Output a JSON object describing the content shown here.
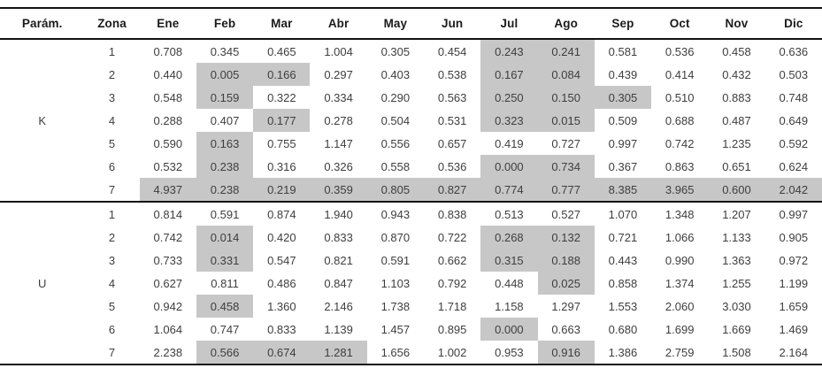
{
  "table": {
    "headers": [
      "Parám.",
      "Zona",
      "Ene",
      "Feb",
      "Mar",
      "Abr",
      "May",
      "Jun",
      "Jul",
      "Ago",
      "Sep",
      "Oct",
      "Nov",
      "Dic"
    ],
    "highlight_color": "#c7c7c7",
    "groups": [
      {
        "param": "K",
        "rows": [
          {
            "zona": "1",
            "values": [
              "0.708",
              "0.345",
              "0.465",
              "1.004",
              "0.305",
              "0.454",
              "0.243",
              "0.241",
              "0.581",
              "0.536",
              "0.458",
              "0.636"
            ],
            "gray": [
              6,
              7
            ]
          },
          {
            "zona": "2",
            "values": [
              "0.440",
              "0.005",
              "0.166",
              "0.297",
              "0.403",
              "0.538",
              "0.167",
              "0.084",
              "0.439",
              "0.414",
              "0.432",
              "0.503"
            ],
            "gray": [
              1,
              2,
              6,
              7
            ]
          },
          {
            "zona": "3",
            "values": [
              "0.548",
              "0.159",
              "0.322",
              "0.334",
              "0.290",
              "0.563",
              "0.250",
              "0.150",
              "0.305",
              "0.510",
              "0.883",
              "0.748"
            ],
            "gray": [
              1,
              6,
              7,
              8
            ]
          },
          {
            "zona": "4",
            "values": [
              "0.288",
              "0.407",
              "0.177",
              "0.278",
              "0.504",
              "0.531",
              "0.323",
              "0.015",
              "0.509",
              "0.688",
              "0.487",
              "0.649"
            ],
            "gray": [
              2,
              6,
              7
            ]
          },
          {
            "zona": "5",
            "values": [
              "0.590",
              "0.163",
              "0.755",
              "1.147",
              "0.556",
              "0.657",
              "0.419",
              "0.727",
              "0.997",
              "0.742",
              "1.235",
              "0.592"
            ],
            "gray": [
              1
            ]
          },
          {
            "zona": "6",
            "values": [
              "0.532",
              "0.238",
              "0.316",
              "0.326",
              "0.558",
              "0.536",
              "0.000",
              "0.734",
              "0.367",
              "0.863",
              "0.651",
              "0.624"
            ],
            "gray": [
              1,
              6,
              7
            ]
          },
          {
            "zona": "7",
            "values": [
              "4.937",
              "0.238",
              "0.219",
              "0.359",
              "0.805",
              "0.827",
              "0.774",
              "0.777",
              "8.385",
              "3.965",
              "0.600",
              "2.042"
            ],
            "gray": [
              0,
              1,
              2,
              3,
              4,
              5,
              6,
              7,
              8,
              9,
              10,
              11
            ]
          }
        ]
      },
      {
        "param": "U",
        "rows": [
          {
            "zona": "1",
            "values": [
              "0.814",
              "0.591",
              "0.874",
              "1.940",
              "0.943",
              "0.838",
              "0.513",
              "0.527",
              "1.070",
              "1.348",
              "1.207",
              "0.997"
            ],
            "gray": []
          },
          {
            "zona": "2",
            "values": [
              "0.742",
              "0.014",
              "0.420",
              "0.833",
              "0.870",
              "0.722",
              "0.268",
              "0.132",
              "0.721",
              "1.066",
              "1.133",
              "0.905"
            ],
            "gray": [
              1,
              6,
              7
            ]
          },
          {
            "zona": "3",
            "values": [
              "0.733",
              "0.331",
              "0.547",
              "0.821",
              "0.591",
              "0.662",
              "0.315",
              "0.188",
              "0.443",
              "0.990",
              "1.363",
              "0.972"
            ],
            "gray": [
              1,
              6,
              7
            ]
          },
          {
            "zona": "4",
            "values": [
              "0.627",
              "0.811",
              "0.486",
              "0.847",
              "1.103",
              "0.792",
              "0.448",
              "0.025",
              "0.858",
              "1.374",
              "1.255",
              "1.199"
            ],
            "gray": [
              7
            ]
          },
          {
            "zona": "5",
            "values": [
              "0.942",
              "0.458",
              "1.360",
              "2.146",
              "1.738",
              "1.718",
              "1.158",
              "1.297",
              "1.553",
              "2.060",
              "3.030",
              "1.659"
            ],
            "gray": [
              1
            ]
          },
          {
            "zona": "6",
            "values": [
              "1.064",
              "0.747",
              "0.833",
              "1.139",
              "1.457",
              "0.895",
              "0.000",
              "0.663",
              "0.680",
              "1.699",
              "1.669",
              "1.469"
            ],
            "gray": [
              6
            ]
          },
          {
            "zona": "7",
            "values": [
              "2.238",
              "0.566",
              "0.674",
              "1.281",
              "1.656",
              "1.002",
              "0.953",
              "0.916",
              "1.386",
              "2.759",
              "1.508",
              "2.164"
            ],
            "gray": [
              1,
              2,
              3,
              7
            ]
          }
        ]
      }
    ]
  }
}
